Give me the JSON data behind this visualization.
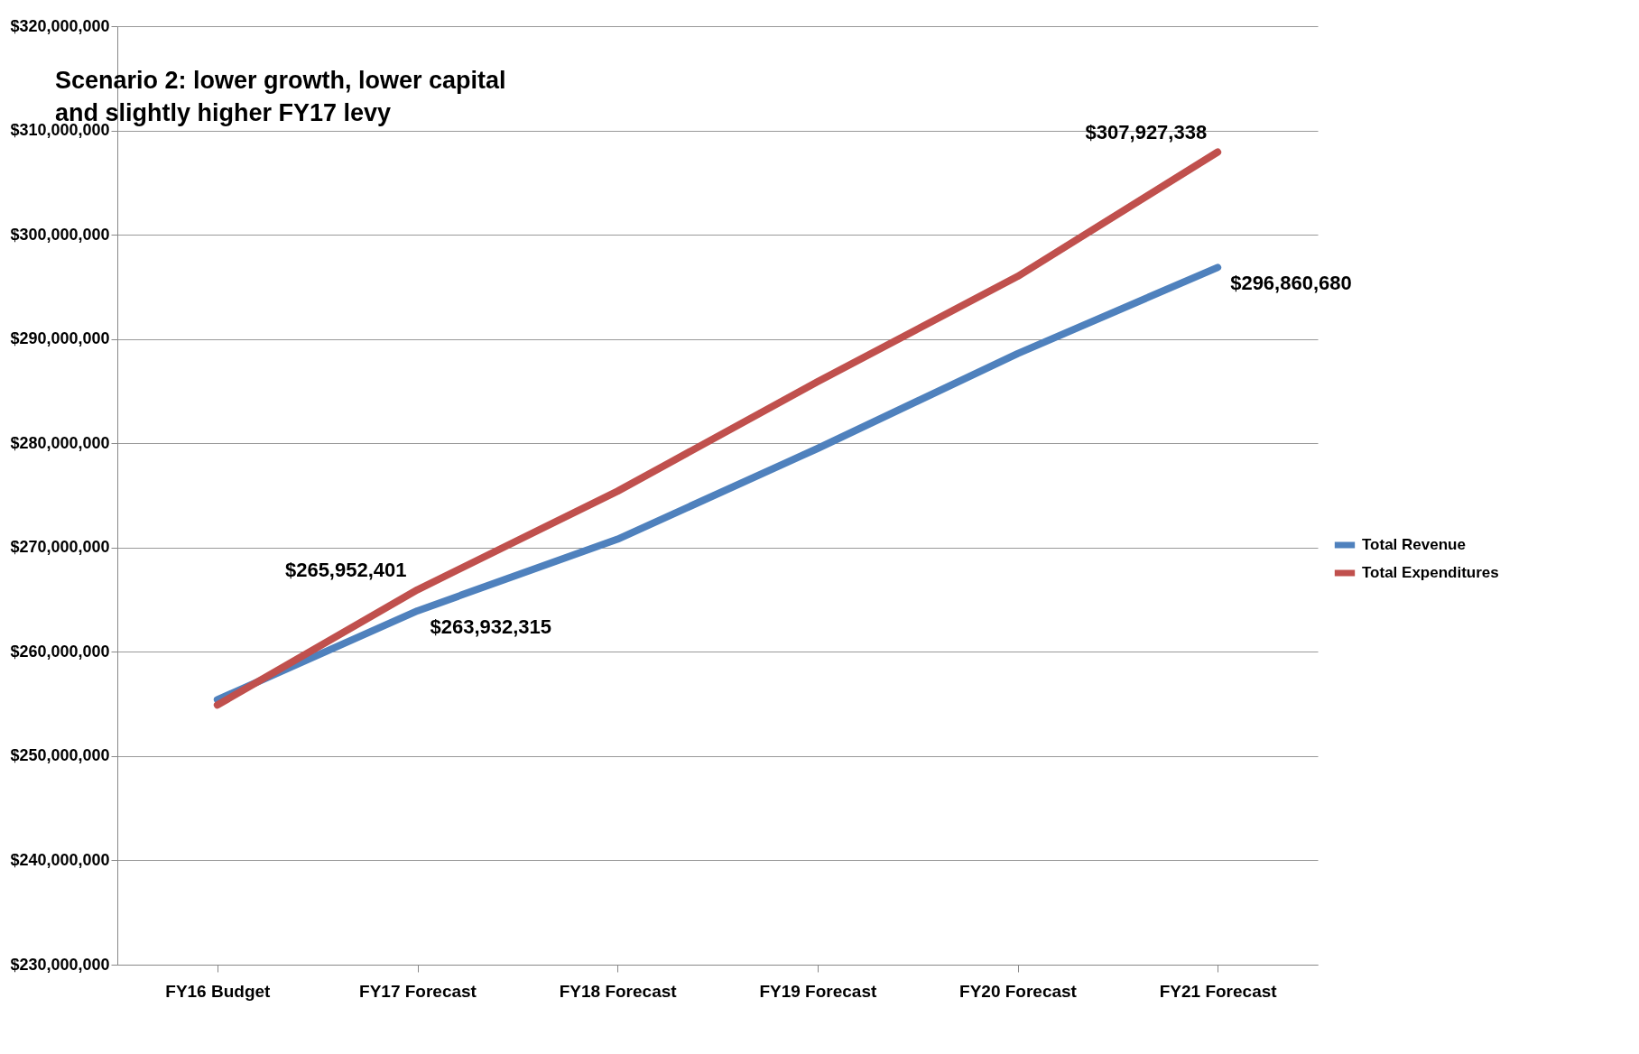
{
  "chart_data": {
    "type": "line",
    "title": "Scenario 2: lower growth, lower capital and slightly higher FY17 levy",
    "categories": [
      "FY16 Budget",
      "FY17 Forecast",
      "FY18 Forecast",
      "FY19 Forecast",
      "FY20 Forecast",
      "FY21 Forecast"
    ],
    "series": [
      {
        "name": "Total Revenue",
        "color": "#4f81bd",
        "values": [
          255400000,
          263932315,
          270800000,
          279500000,
          288600000,
          296860680
        ],
        "value_labels": [
          null,
          "$263,932,315",
          null,
          null,
          null,
          "$296,860,680"
        ]
      },
      {
        "name": "Total Expenditures",
        "color": "#c0504d",
        "values": [
          254900000,
          265952401,
          275400000,
          285900000,
          296000000,
          307927338
        ],
        "value_labels": [
          null,
          "$265,952,401",
          null,
          null,
          null,
          "$307,927,338"
        ]
      }
    ],
    "ylim": [
      230000000,
      320000000
    ],
    "yticks": [
      {
        "value": 230000000,
        "label": "$230,000,000"
      },
      {
        "value": 240000000,
        "label": "$240,000,000"
      },
      {
        "value": 250000000,
        "label": "$250,000,000"
      },
      {
        "value": 260000000,
        "label": "$260,000,000"
      },
      {
        "value": 270000000,
        "label": "$270,000,000"
      },
      {
        "value": 280000000,
        "label": "$280,000,000"
      },
      {
        "value": 290000000,
        "label": "$290,000,000"
      },
      {
        "value": 300000000,
        "label": "$300,000,000"
      },
      {
        "value": 310000000,
        "label": "$310,000,000"
      },
      {
        "value": 320000000,
        "label": "$320,000,000"
      }
    ],
    "grid": "y",
    "legend": "right",
    "marker": "none",
    "line_style": "solid"
  }
}
